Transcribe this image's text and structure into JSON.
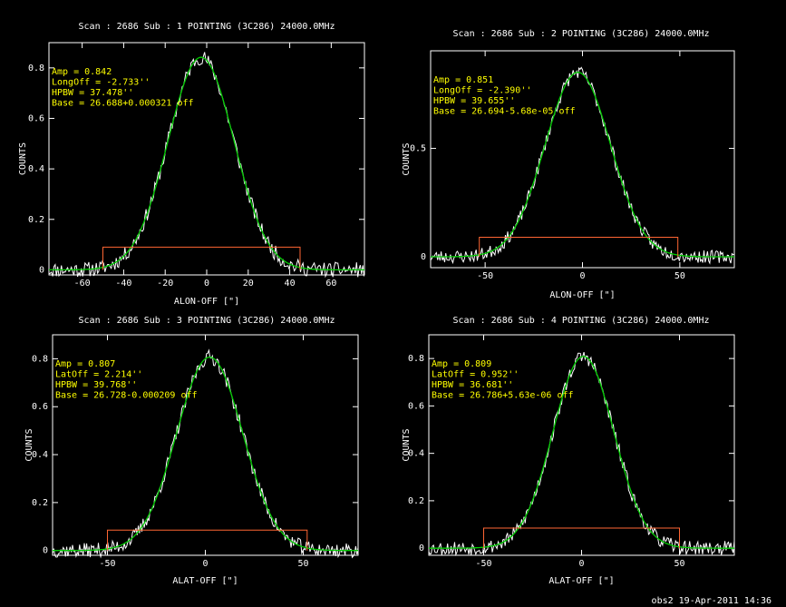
{
  "footer": "obs2 19-Apr-2011 14:36",
  "colors": {
    "background": "#000000",
    "axes": "#ffffff",
    "data": "#ffffff",
    "fit": "#00cc00",
    "baseline": "#ff6633",
    "annotation": "#ffff00"
  },
  "chart_data": [
    {
      "type": "line",
      "title": "Scan : 2686   Sub : 1    POINTING   (3C286)    24000.0MHz",
      "xlabel": "ALON-OFF [\"]",
      "ylabel": "COUNTS",
      "xlim": [
        -76,
        76
      ],
      "ylim": [
        -0.02,
        0.9
      ],
      "xticks": [
        -60,
        -40,
        -20,
        0,
        20,
        40,
        60
      ],
      "xtick_labels": [
        "-60",
        "-40",
        "-20",
        "0",
        "20",
        "40",
        "60"
      ],
      "yticks": [
        0,
        0.2,
        0.4,
        0.6,
        0.8
      ],
      "ytick_labels": [
        "0",
        "0.2",
        "0.4",
        "0.6",
        "0.8"
      ],
      "annotations": [
        "Amp = 0.842",
        "LongOff = -2.733''",
        "HPBW = 37.478''",
        "Base = 26.688+0.000321 off"
      ],
      "series": [
        {
          "kind": "fit",
          "amp": 0.842,
          "center": -2.733,
          "hpbw": 37.478,
          "base": 0.0,
          "seed": 11
        },
        {
          "kind": "baseline_window",
          "x": [
            -50,
            -50,
            45,
            45
          ],
          "y": [
            0.0,
            0.09,
            0.09,
            0.0
          ]
        }
      ]
    },
    {
      "type": "line",
      "title": "Scan : 2686   Sub : 2    POINTING   (3C286)    24000.0MHz",
      "xlabel": "ALON-OFF [\"]",
      "ylabel": "COUNTS",
      "xlim": [
        -78,
        78
      ],
      "ylim": [
        -0.05,
        0.95
      ],
      "xticks": [
        -50,
        0,
        50
      ],
      "xtick_labels": [
        "-50",
        "0",
        "50"
      ],
      "yticks": [
        0,
        0.5
      ],
      "ytick_labels": [
        "0",
        "0.5"
      ],
      "annotations": [
        "Amp = 0.851",
        "LongOff = -2.390''",
        "HPBW = 39.655''",
        "Base = 26.694-5.68e-05 off"
      ],
      "series": [
        {
          "kind": "fit",
          "amp": 0.851,
          "center": -2.39,
          "hpbw": 39.655,
          "base": 0.0,
          "seed": 23
        },
        {
          "kind": "baseline_window",
          "x": [
            -53,
            -53,
            49,
            49
          ],
          "y": [
            0.0,
            0.09,
            0.09,
            0.0
          ]
        }
      ]
    },
    {
      "type": "line",
      "title": "Scan : 2686   Sub : 3    POINTING   (3C286)    24000.0MHz",
      "xlabel": "ALAT-OFF [\"]",
      "ylabel": "COUNTS",
      "xlim": [
        -78,
        78
      ],
      "ylim": [
        -0.02,
        0.9
      ],
      "xticks": [
        -50,
        0,
        50
      ],
      "xtick_labels": [
        "-50",
        "0",
        "50"
      ],
      "yticks": [
        0,
        0.2,
        0.4,
        0.6,
        0.8
      ],
      "ytick_labels": [
        "0",
        "0.2",
        "0.4",
        "0.6",
        "0.8"
      ],
      "annotations": [
        "Amp = 0.807",
        "LatOff = 2.214''",
        "HPBW = 39.768''",
        "Base = 26.728-0.000209 off"
      ],
      "series": [
        {
          "kind": "fit",
          "amp": 0.807,
          "center": 2.214,
          "hpbw": 39.768,
          "base": 0.0,
          "seed": 37
        },
        {
          "kind": "baseline_window",
          "x": [
            -50,
            -50,
            52,
            52
          ],
          "y": [
            0.0,
            0.085,
            0.085,
            0.0
          ]
        }
      ]
    },
    {
      "type": "line",
      "title": "Scan : 2686   Sub : 4    POINTING   (3C286)    24000.0MHz",
      "xlabel": "ALAT-OFF [\"]",
      "ylabel": "COUNTS",
      "xlim": [
        -78,
        78
      ],
      "ylim": [
        -0.03,
        0.9
      ],
      "xticks": [
        -50,
        0,
        50
      ],
      "xtick_labels": [
        "-50",
        "0",
        "50"
      ],
      "yticks": [
        0,
        0.2,
        0.4,
        0.6,
        0.8
      ],
      "ytick_labels": [
        "0",
        "0.2",
        "0.4",
        "0.6",
        "0.8"
      ],
      "annotations": [
        "Amp = 0.809",
        "LatOff = 0.952''",
        "HPBW = 36.681''",
        "Base = 26.786+5.63e-06 off"
      ],
      "series": [
        {
          "kind": "fit",
          "amp": 0.809,
          "center": 0.952,
          "hpbw": 36.681,
          "base": 0.0,
          "seed": 53
        },
        {
          "kind": "baseline_window",
          "x": [
            -50,
            -50,
            50,
            50
          ],
          "y": [
            0.0,
            0.085,
            0.085,
            0.0
          ]
        }
      ]
    }
  ]
}
